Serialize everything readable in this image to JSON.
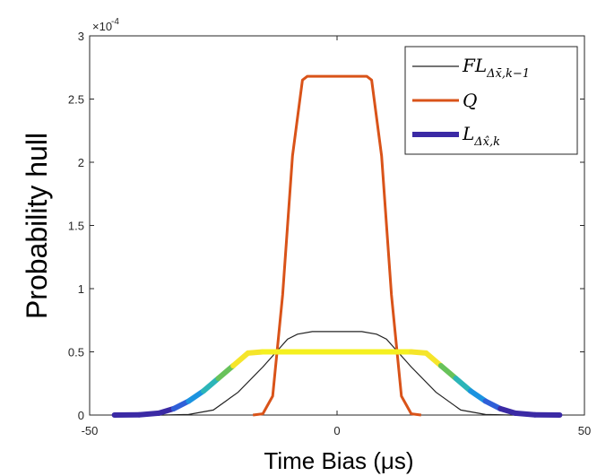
{
  "chart_data": {
    "type": "line",
    "xlabel": "Time Bias (μs)",
    "ylabel": "Probability hull",
    "xlim": [
      -50,
      50
    ],
    "ylim": [
      0,
      0.0003
    ],
    "y_exponent_label": "×10",
    "y_exponent_power": "-4",
    "x_ticks": [
      -50,
      0,
      50
    ],
    "x_tick_labels": [
      "-50",
      "0",
      "50"
    ],
    "y_ticks": [
      0,
      5e-05,
      0.0001,
      0.00015,
      0.0002,
      0.00025,
      0.0003
    ],
    "y_tick_labels": [
      "0",
      "0.5",
      "1",
      "1.5",
      "2",
      "2.5",
      "3"
    ],
    "legend_position": "top-right",
    "grid": false,
    "series": [
      {
        "name": "FL",
        "legend_main": "FL",
        "legend_sub": "Δx̄,k−1",
        "color": "#222222",
        "x": [
          -45,
          -35,
          -30,
          -25,
          -20,
          -15,
          -10,
          -8,
          -5,
          0,
          5,
          8,
          10,
          15,
          20,
          25,
          30,
          35,
          45
        ],
        "y": [
          0,
          0,
          4e-07,
          4e-06,
          1.8e-05,
          3.8e-05,
          6e-05,
          6.4e-05,
          6.6e-05,
          6.6e-05,
          6.6e-05,
          6.4e-05,
          6e-05,
          3.8e-05,
          1.8e-05,
          4e-06,
          4e-07,
          0,
          0
        ]
      },
      {
        "name": "Q",
        "legend_main": "Q",
        "legend_sub": "",
        "color": "#d95319",
        "x": [
          -17,
          -15,
          -13,
          -11,
          -9,
          -7,
          -6,
          0,
          6,
          7,
          9,
          11,
          13,
          15,
          17
        ],
        "y": [
          0,
          1e-06,
          1.5e-05,
          9.5e-05,
          0.000205,
          0.000265,
          0.000268,
          0.000268,
          0.000268,
          0.000265,
          0.000205,
          9.5e-05,
          1.5e-05,
          1e-06,
          0
        ]
      },
      {
        "name": "L",
        "legend_main": "L",
        "legend_sub": "Δx̂,k",
        "color": "#3b2aa5",
        "x": [
          -45,
          -40,
          -36,
          -33,
          -30,
          -27,
          -24,
          -21,
          -18,
          -15,
          -10,
          0,
          10,
          15,
          18,
          21,
          24,
          27,
          30,
          33,
          36,
          40,
          45
        ],
        "y": [
          0,
          2e-07,
          1.5e-06,
          5e-06,
          1.1e-05,
          1.9e-05,
          2.9e-05,
          3.9e-05,
          4.9e-05,
          5e-05,
          5e-05,
          5e-05,
          5e-05,
          5e-05,
          4.9e-05,
          3.9e-05,
          2.9e-05,
          1.9e-05,
          1.1e-05,
          5e-06,
          1.5e-06,
          2e-07,
          0
        ]
      }
    ]
  }
}
